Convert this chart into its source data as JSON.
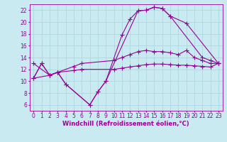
{
  "background_color": "#c8eaf0",
  "grid_color": "#b0d8e0",
  "line_color": "#990099",
  "line_width": 0.8,
  "marker": "+",
  "markersize": 4,
  "markeredgewidth": 0.8,
  "xlabel": "Windchill (Refroidissement éolien,°C)",
  "xlabel_fontsize": 6,
  "tick_fontsize": 5.5,
  "ylim": [
    5,
    23
  ],
  "xlim": [
    -0.5,
    23.5
  ],
  "yticks": [
    6,
    8,
    10,
    12,
    14,
    16,
    18,
    20,
    22
  ],
  "xticks": [
    0,
    1,
    2,
    3,
    4,
    5,
    6,
    7,
    8,
    9,
    10,
    11,
    12,
    13,
    14,
    15,
    16,
    17,
    18,
    19,
    20,
    21,
    22,
    23
  ],
  "series1_x": [
    0,
    1,
    2,
    3,
    4,
    7,
    8,
    9,
    13,
    14,
    15,
    16,
    17,
    19,
    23
  ],
  "series1_y": [
    10.5,
    13.0,
    11.0,
    11.5,
    9.5,
    6.0,
    8.2,
    10.0,
    21.9,
    22.0,
    22.5,
    22.3,
    21.0,
    19.8,
    13.0
  ],
  "series2_x": [
    0,
    1,
    2,
    3,
    4,
    7,
    8,
    9,
    11,
    12,
    13,
    14,
    15,
    16,
    17,
    21,
    22,
    23
  ],
  "series2_y": [
    10.5,
    13.0,
    11.0,
    11.5,
    9.5,
    6.0,
    8.2,
    10.0,
    17.8,
    20.5,
    21.9,
    22.0,
    22.5,
    22.3,
    21.0,
    14.0,
    13.5,
    13.0
  ],
  "series3_x": [
    0,
    2,
    3,
    5,
    6,
    10,
    11,
    12,
    13,
    14,
    15,
    16,
    17,
    18,
    19,
    20,
    21,
    22,
    23
  ],
  "series3_y": [
    13.0,
    11.0,
    11.5,
    12.5,
    13.0,
    13.5,
    14.0,
    14.5,
    15.0,
    15.2,
    15.0,
    15.0,
    14.8,
    14.5,
    15.2,
    14.0,
    13.5,
    13.0,
    13.0
  ],
  "series4_x": [
    0,
    2,
    3,
    5,
    6,
    10,
    11,
    12,
    13,
    14,
    15,
    16,
    17,
    18,
    19,
    20,
    21,
    22,
    23
  ],
  "series4_y": [
    10.5,
    11.0,
    11.5,
    11.8,
    12.0,
    12.0,
    12.2,
    12.4,
    12.6,
    12.8,
    12.9,
    12.9,
    12.8,
    12.7,
    12.7,
    12.6,
    12.5,
    12.4,
    13.0
  ]
}
